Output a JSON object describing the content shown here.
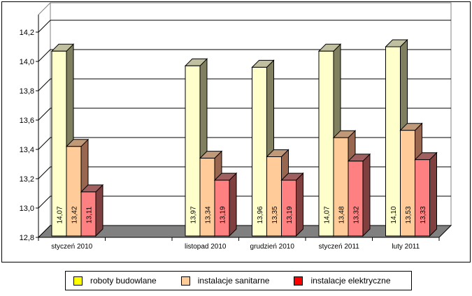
{
  "chart_data": {
    "type": "bar",
    "title": "",
    "xlabel": "",
    "ylabel": "",
    "categories": [
      "styczeń 2010",
      "",
      "listopad 2010",
      "grudzień 2010",
      "styczeń 2011",
      "luty 2011"
    ],
    "series": [
      {
        "name": "roboty budowlane",
        "color": "#FFFFCC",
        "legend_color": "#FFFF00",
        "side_color": "#808060",
        "top_color": "#C0C0A0",
        "values": [
          14.07,
          null,
          13.97,
          13.96,
          14.07,
          14.1
        ],
        "labels": [
          "14,07",
          "",
          "13,97",
          "13,96",
          "14,07",
          "14,10"
        ]
      },
      {
        "name": "instalacje sanitarne",
        "color": "#FFCC99",
        "legend_color": "#FFCC99",
        "side_color": "#996650",
        "top_color": "#C09978",
        "values": [
          13.42,
          null,
          13.34,
          13.35,
          13.48,
          13.53
        ],
        "labels": [
          "13,42",
          "",
          "13,34",
          "13,35",
          "13,48",
          "13,53"
        ]
      },
      {
        "name": "instalacje elektryczne",
        "color": "#FF8080",
        "legend_color": "#FF0000",
        "side_color": "#804040",
        "top_color": "#A06060",
        "values": [
          13.11,
          null,
          13.19,
          13.19,
          13.32,
          13.33
        ],
        "labels": [
          "13,11",
          "",
          "13,19",
          "13,19",
          "13,32",
          "13,33"
        ]
      }
    ],
    "ylim": [
      12.8,
      14.2
    ],
    "yticks": [
      12.8,
      13.0,
      13.2,
      13.4,
      13.6,
      13.8,
      14.0,
      14.2
    ],
    "ytick_labels": [
      "12,8",
      "13,0",
      "13,2",
      "13,4",
      "13,6",
      "13,8",
      "14,0",
      "14,2"
    ],
    "grid": true,
    "legend_position": "bottom",
    "style": "3d-clustered-column",
    "floor_color": "#808080"
  }
}
